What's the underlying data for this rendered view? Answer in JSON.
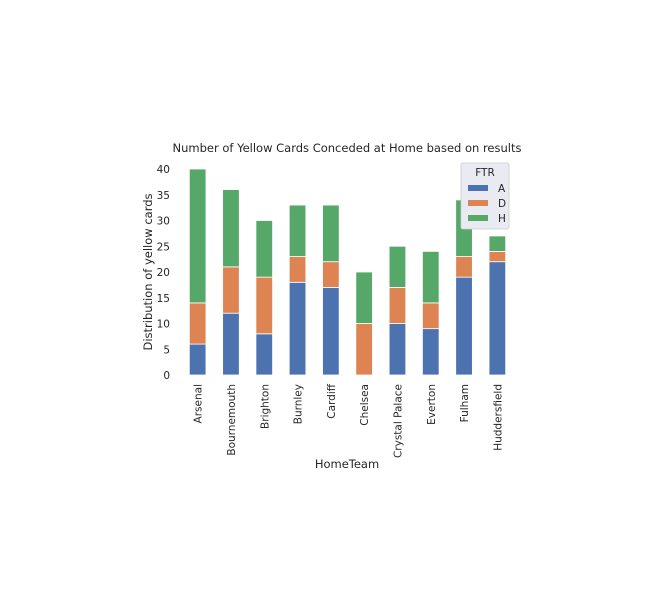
{
  "chart_data": {
    "type": "bar",
    "stacked": true,
    "title": "Number of Yellow Cards Conceded at Home based on results",
    "xlabel": "HomeTeam",
    "ylabel": "Distribution of yellow cards",
    "categories": [
      "Arsenal",
      "Bournemouth",
      "Brighton",
      "Burnley",
      "Cardiff",
      "Chelsea",
      "Crystal Palace",
      "Everton",
      "Fulham",
      "Huddersfield"
    ],
    "series": [
      {
        "name": "A",
        "color": "#4c72b0",
        "values": [
          6,
          12,
          8,
          18,
          17,
          0,
          10,
          9,
          19,
          22
        ]
      },
      {
        "name": "D",
        "color": "#dd8452",
        "values": [
          8,
          9,
          11,
          5,
          5,
          10,
          7,
          5,
          4,
          2
        ]
      },
      {
        "name": "H",
        "color": "#55a868",
        "values": [
          26,
          15,
          11,
          10,
          11,
          10,
          8,
          10,
          11,
          3
        ]
      }
    ],
    "ylim": [
      0,
      40
    ],
    "yticks": [
      "0",
      "5",
      "10",
      "15",
      "20",
      "25",
      "30",
      "35",
      "40"
    ],
    "legend": {
      "title": "FTR",
      "placement": "upper right"
    },
    "grid": false
  }
}
